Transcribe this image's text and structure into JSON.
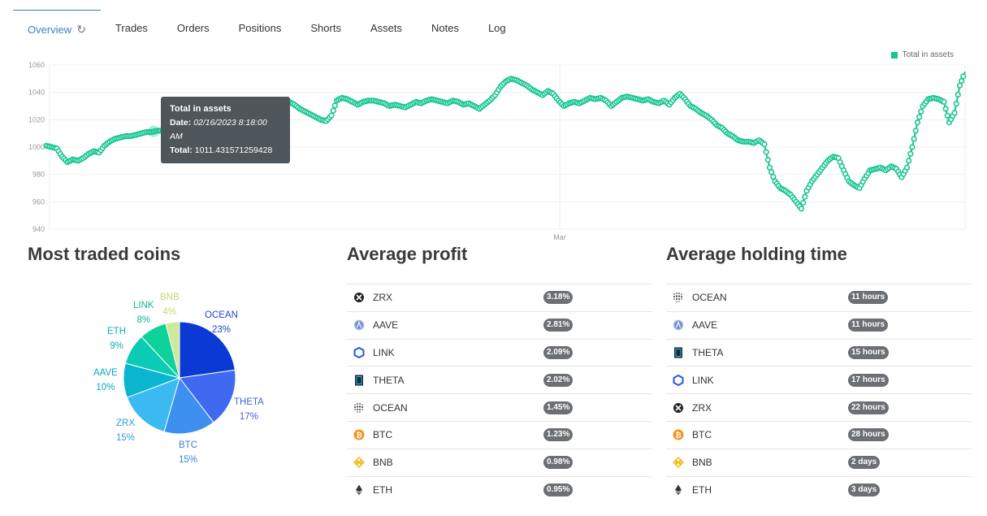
{
  "tabs": [
    {
      "label": "Overview",
      "active": true
    },
    {
      "label": "Trades"
    },
    {
      "label": "Orders"
    },
    {
      "label": "Positions"
    },
    {
      "label": "Shorts"
    },
    {
      "label": "Assets"
    },
    {
      "label": "Notes"
    },
    {
      "label": "Log"
    }
  ],
  "colors": {
    "accent": "#3d7fd1",
    "series": "#13c58f"
  },
  "chart_data": {
    "type": "line",
    "series": [
      {
        "name": "Total in assets",
        "color": "#13c58f"
      }
    ],
    "y_ticks": [
      "1060",
      "1040",
      "1020",
      "1000",
      "980",
      "960",
      "940"
    ],
    "ylim": [
      940,
      1060
    ],
    "x_ticks": [
      "Mar"
    ],
    "values": [
      1001,
      1000,
      999,
      993,
      989,
      991,
      990,
      992,
      995,
      997,
      996,
      1001,
      1004,
      1006,
      1007,
      1008,
      1008,
      1009,
      1010,
      1011,
      1011,
      1012,
      1012,
      1011,
      1012,
      1013,
      1015,
      1017,
      1019,
      1020,
      1020,
      1021,
      1024,
      1025,
      1024,
      1023,
      1025,
      1022,
      1026,
      1028,
      1030,
      1032,
      1033,
      1033,
      1034,
      1034,
      1033,
      1031,
      1028,
      1026,
      1024,
      1022,
      1020,
      1019,
      1023,
      1034,
      1036,
      1035,
      1033,
      1031,
      1033,
      1034,
      1034,
      1033,
      1032,
      1030,
      1031,
      1030,
      1029,
      1031,
      1033,
      1032,
      1034,
      1035,
      1034,
      1033,
      1032,
      1034,
      1033,
      1031,
      1032,
      1030,
      1028,
      1031,
      1034,
      1038,
      1044,
      1048,
      1050,
      1049,
      1047,
      1045,
      1042,
      1040,
      1038,
      1041,
      1039,
      1034,
      1030,
      1032,
      1033,
      1032,
      1034,
      1036,
      1035,
      1036,
      1034,
      1030,
      1033,
      1036,
      1037,
      1036,
      1035,
      1034,
      1035,
      1033,
      1032,
      1034,
      1031,
      1036,
      1039,
      1035,
      1030,
      1028,
      1025,
      1023,
      1020,
      1016,
      1014,
      1010,
      1008,
      1005,
      1004,
      1004,
      1003,
      1005,
      1002,
      985,
      975,
      970,
      968,
      965,
      960,
      955,
      968,
      975,
      980,
      985,
      990,
      993,
      992,
      983,
      975,
      972,
      970,
      977,
      983,
      984,
      985,
      983,
      986,
      984,
      978,
      985,
      1000,
      1018,
      1030,
      1035,
      1036,
      1035,
      1033,
      1018,
      1025,
      1045,
      1055
    ]
  },
  "tooltip": {
    "title": "Total in assets",
    "date_label": "Date:",
    "date_value": "02/16/2023 8:18:00 AM",
    "total_label": "Total:",
    "total_value": "1011.431571259428"
  },
  "sections": {
    "most_traded": "Most traded coins",
    "avg_profit": "Average profit",
    "avg_holding": "Average holding time"
  },
  "pie": {
    "slices": [
      {
        "name": "OCEAN",
        "pct": 23,
        "color": "#0a3ad3",
        "label_color": "#1e45c8"
      },
      {
        "name": "THETA",
        "pct": 17,
        "color": "#4069f2",
        "label_color": "#3f63d9"
      },
      {
        "name": "BTC",
        "pct": 15,
        "color": "#3d8ff0",
        "label_color": "#3a7fd6"
      },
      {
        "name": "ZRX",
        "pct": 15,
        "color": "#3bbaf2",
        "label_color": "#2aa0d8"
      },
      {
        "name": "AAVE",
        "pct": 10,
        "color": "#0ab5cf",
        "label_color": "#0aa6bf"
      },
      {
        "name": "ETH",
        "pct": 9,
        "color": "#0ccbb5",
        "label_color": "#0bb6a8"
      },
      {
        "name": "LINK",
        "pct": 8,
        "color": "#0dd39a",
        "label_color": "#0db690"
      },
      {
        "name": "BNB",
        "pct": 4,
        "color": "#cfe99a",
        "label_color": "#c3d96e"
      }
    ],
    "labels": {
      "OCEAN": "OCEAN",
      "OCEAN_pct": "23%",
      "THETA": "THETA",
      "THETA_pct": "17%",
      "BTC": "BTC",
      "BTC_pct": "15%",
      "ZRX": "ZRX",
      "ZRX_pct": "15%",
      "AAVE": "AAVE",
      "AAVE_pct": "10%",
      "ETH": "ETH",
      "ETH_pct": "9%",
      "LINK": "LINK",
      "LINK_pct": "8%",
      "BNB": "BNB",
      "BNB_pct": "4%"
    }
  },
  "avg_profit": [
    {
      "coin": "ZRX",
      "value": "3.18%",
      "icon": "zrx-icon"
    },
    {
      "coin": "AAVE",
      "value": "2.81%",
      "icon": "aave-icon"
    },
    {
      "coin": "LINK",
      "value": "2.09%",
      "icon": "link-icon"
    },
    {
      "coin": "THETA",
      "value": "2.02%",
      "icon": "theta-icon"
    },
    {
      "coin": "OCEAN",
      "value": "1.45%",
      "icon": "ocean-icon"
    },
    {
      "coin": "BTC",
      "value": "1.23%",
      "icon": "btc-icon"
    },
    {
      "coin": "BNB",
      "value": "0.98%",
      "icon": "bnb-icon"
    },
    {
      "coin": "ETH",
      "value": "0.95%",
      "icon": "eth-icon"
    }
  ],
  "avg_holding": [
    {
      "coin": "OCEAN",
      "value": "11 hours",
      "icon": "ocean-icon"
    },
    {
      "coin": "AAVE",
      "value": "11 hours",
      "icon": "aave-icon"
    },
    {
      "coin": "THETA",
      "value": "15 hours",
      "icon": "theta-icon"
    },
    {
      "coin": "LINK",
      "value": "17 hours",
      "icon": "link-icon"
    },
    {
      "coin": "ZRX",
      "value": "22 hours",
      "icon": "zrx-icon"
    },
    {
      "coin": "BTC",
      "value": "28 hours",
      "icon": "btc-icon"
    },
    {
      "coin": "BNB",
      "value": "2 days",
      "icon": "bnb-icon"
    },
    {
      "coin": "ETH",
      "value": "3 days",
      "icon": "eth-icon"
    }
  ]
}
